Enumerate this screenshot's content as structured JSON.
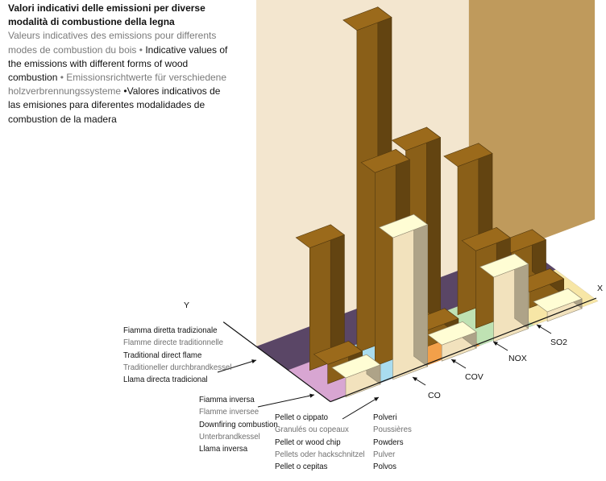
{
  "title": {
    "it": "Valori indicativi delle emissioni per diverse modalità di combustione della legna",
    "fr": "Valeurs indicatives des emissions pour differents modes de combustion du bois",
    "en": "Indicative values of the emissions with different forms of wood combustion",
    "de": "Emissionsrichtwerte für verschiedene holzverbrennungssysteme",
    "es": "Valores indicativos de las emisiones para diferentes modalidades de combustion de la madera"
  },
  "axes": {
    "x": "X",
    "y": "Y"
  },
  "colors": {
    "wall": "#f3e6cf",
    "back_wall": "#bf9a5c",
    "dark_bar": "#8a5f18",
    "light_bar": "#f2e2bd",
    "lane_polveri": "#d8a6d2",
    "lane_co": "#a9dcef",
    "lane_cov": "#f2a04a",
    "lane_nox": "#bfe2b3",
    "lane_so2": "#f7e6a6",
    "lane_floor": "#5a4666"
  },
  "chart_data": {
    "type": "bar",
    "categories": [
      "Polveri",
      "CO",
      "COV",
      "NOX",
      "SO2"
    ],
    "category_labels": {
      "Polveri": [
        "Polveri",
        "Poussières",
        "Powders",
        "Pulver",
        "Polvos"
      ],
      "CO": [
        "CO"
      ],
      "COV": [
        "COV"
      ],
      "NOX": [
        "NOX"
      ],
      "SO2": [
        "SO2"
      ]
    },
    "series": [
      {
        "name": "Fiamma diretta tradizionale",
        "values": [
          38,
          100,
          57,
          46,
          13
        ],
        "labels": [
          "Fiamma diretta tradizionale",
          "Flamme directe traditionnelle",
          "Traditional direct flame",
          "Traditioneller durchbrandkessel",
          "Llama directa tradicional"
        ]
      },
      {
        "name": "Fiamma inversa",
        "values": [
          6,
          60,
          5,
          24,
          5
        ],
        "labels": [
          "Fiamma inversa",
          "Flamme inversee",
          "Downfiring combustion",
          "Unterbrandkessel",
          "Llama inversa"
        ]
      },
      {
        "name": "Pellet o cippato",
        "values": [
          6,
          44,
          5,
          20,
          3
        ],
        "labels": [
          "Pellet o cippato",
          "Granulés ou copeaux",
          "Pellet or wood chip",
          "Pellets oder hackschnitzel",
          "Pellet o cepitas"
        ]
      }
    ],
    "legend": "left, arrows pointing to rows",
    "grid": false
  }
}
